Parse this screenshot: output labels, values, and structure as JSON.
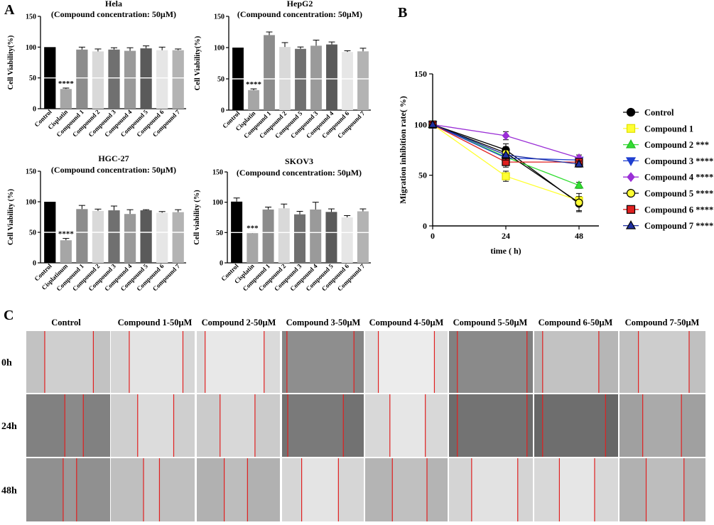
{
  "panels": {
    "a": "A",
    "b": "B",
    "c": "C"
  },
  "chart_data": [
    {
      "type": "bar",
      "title": "Hela",
      "subtitle": "(Compound concentration: 50μM)",
      "ylabel": "Cell Viability(%)",
      "ylim": [
        0,
        150
      ],
      "yticks": [
        "0",
        "50",
        "100",
        "150"
      ],
      "categories": [
        "Control",
        "Cisplatin",
        "Compound 1",
        "Compound 2",
        "Compound 3",
        "Compound 4",
        "Compound 5",
        "Compound 6",
        "Compound 7"
      ],
      "values": [
        100,
        32,
        96,
        93,
        96,
        94,
        98,
        95,
        95
      ],
      "errors": [
        0,
        1.5,
        4,
        4,
        3,
        5,
        4,
        5,
        2
      ],
      "colors": [
        "#000000",
        "#a6a6a6",
        "#8c8c8c",
        "#d9d9d9",
        "#707070",
        "#9a9a9a",
        "#5a5a5a",
        "#e6e6e6",
        "#b3b3b3"
      ],
      "annotations": [
        {
          "category": "Cisplatin",
          "text": "****"
        }
      ]
    },
    {
      "type": "bar",
      "title": "HepG2",
      "subtitle": "(Compound concentration: 50μM)",
      "ylabel": "Cell Viability(%)",
      "ylim": [
        0,
        150
      ],
      "yticks": [
        "0",
        "50",
        "100",
        "150"
      ],
      "categories": [
        "Control",
        "Cisplatin",
        "Compound 1",
        "Compound 2",
        "Compound 5",
        "Compound 3",
        "Compound 4",
        "Compound 6",
        "Compound 7"
      ],
      "values": [
        100,
        32,
        120,
        101,
        98,
        103,
        105,
        93,
        94
      ],
      "errors": [
        0,
        2,
        5,
        7,
        3,
        9,
        4,
        2,
        5
      ],
      "colors": [
        "#000000",
        "#a6a6a6",
        "#8c8c8c",
        "#d9d9d9",
        "#707070",
        "#9a9a9a",
        "#5a5a5a",
        "#e6e6e6",
        "#b3b3b3"
      ],
      "annotations": [
        {
          "category": "Cisplatin",
          "text": "****"
        }
      ]
    },
    {
      "type": "bar",
      "title": "HGC-27",
      "subtitle": "(Compound concentration: 50μM)",
      "ylabel": "Cell Viability (%)",
      "ylim": [
        0,
        150
      ],
      "yticks": [
        "0",
        "50",
        "100",
        "150"
      ],
      "categories": [
        "Control",
        "Cisplatinum",
        "Compound 1",
        "Compound 2",
        "Compound 3",
        "Compound 4",
        "Compound 5",
        "Compound 6",
        "Compound 7"
      ],
      "values": [
        100,
        37,
        88,
        85,
        86,
        80,
        86,
        82,
        83
      ],
      "errors": [
        0,
        3,
        6,
        3,
        7,
        7,
        1,
        2,
        4
      ],
      "colors": [
        "#000000",
        "#a6a6a6",
        "#8c8c8c",
        "#d9d9d9",
        "#707070",
        "#9a9a9a",
        "#5a5a5a",
        "#e6e6e6",
        "#b3b3b3"
      ],
      "annotations": [
        {
          "category": "Cisplatinum",
          "text": "****"
        }
      ]
    },
    {
      "type": "bar",
      "title": "SKOV3",
      "subtitle": "(Compound concentration: 50μM)",
      "ylabel": "Cell viability (%)",
      "ylim": [
        0,
        150
      ],
      "yticks": [
        "0",
        "50",
        "100",
        "150"
      ],
      "categories": [
        "Control",
        "Cisplatin",
        "Compound 1",
        "Compound 2",
        "Compound 3",
        "Compound 4",
        "Compound 5",
        "Compound 6",
        "Compound 7"
      ],
      "values": [
        101,
        49,
        88,
        90,
        80,
        88,
        84,
        75,
        85
      ],
      "errors": [
        6,
        1,
        4,
        7,
        5,
        12,
        5,
        3,
        4
      ],
      "colors": [
        "#000000",
        "#a6a6a6",
        "#8c8c8c",
        "#d9d9d9",
        "#707070",
        "#9a9a9a",
        "#5a5a5a",
        "#e6e6e6",
        "#b3b3b3"
      ],
      "annotations": [
        {
          "category": "Cisplatin",
          "text": "***"
        }
      ]
    },
    {
      "type": "line",
      "title": "",
      "xlabel": "time ( h)",
      "ylabel": "Migration inhibition rate( %)",
      "x": [
        0,
        24,
        48
      ],
      "xticks": [
        "0",
        "24",
        "48"
      ],
      "xlim": [
        0,
        48
      ],
      "ylim": [
        0,
        150
      ],
      "yticks": [
        "0",
        "50",
        "100",
        "150"
      ],
      "legend_position": "right",
      "series": [
        {
          "name": "Control",
          "label_suffix": "",
          "values": [
            100,
            75,
            22
          ],
          "errors": [
            2,
            6,
            7
          ],
          "color": "#000000",
          "edge": "#000000",
          "marker": "circle"
        },
        {
          "name": "Compound 1",
          "label_suffix": "",
          "values": [
            100,
            49,
            25
          ],
          "errors": [
            2,
            5,
            3
          ],
          "color": "#ffff33",
          "edge": "#e0e000",
          "marker": "square"
        },
        {
          "name": "Compound 2",
          "label_suffix": "***",
          "values": [
            100,
            68,
            40
          ],
          "errors": [
            2,
            5,
            3
          ],
          "color": "#33dd33",
          "edge": "#22bb22",
          "marker": "triangle-up"
        },
        {
          "name": "Compound 3",
          "label_suffix": "****",
          "values": [
            100,
            67,
            65
          ],
          "errors": [
            2,
            5,
            3
          ],
          "color": "#1f3fd0",
          "edge": "#1f3fd0",
          "marker": "triangle-down"
        },
        {
          "name": "Compound 4",
          "label_suffix": "****",
          "values": [
            100,
            89,
            67
          ],
          "errors": [
            2,
            4,
            3
          ],
          "color": "#9a2fd6",
          "edge": "#9a2fd6",
          "marker": "diamond"
        },
        {
          "name": "Compound 5",
          "label_suffix": "****",
          "values": [
            100,
            72,
            23
          ],
          "errors": [
            2,
            6,
            9
          ],
          "color": "#ffff33",
          "edge": "#000000",
          "marker": "circle"
        },
        {
          "name": "Compound 6",
          "label_suffix": "****",
          "values": [
            100,
            63,
            63
          ],
          "errors": [
            2,
            5,
            3
          ],
          "color": "#e02020",
          "edge": "#000000",
          "marker": "square"
        },
        {
          "name": "Compound 7",
          "label_suffix": "****",
          "values": [
            100,
            70,
            61
          ],
          "errors": [
            2,
            5,
            3
          ],
          "color": "#1f2fa0",
          "edge": "#000000",
          "marker": "triangle-up"
        }
      ]
    }
  ],
  "scratch_assay": {
    "columns": [
      "Control",
      "Compound 1-50μM",
      "Compound 2-50μM",
      "Compound 3-50μM",
      "Compound 4-50μM",
      "Compound 5-50μM",
      "Compound 6-50μM",
      "Compound 7-50μM"
    ],
    "rows": [
      "0h",
      "24h",
      "48h"
    ],
    "tones": [
      [
        "#cfcfcf",
        "#e4e4e4",
        "#e8e8e8",
        "#8e8e8e",
        "#ececec",
        "#8a8a8a",
        "#c2c2c2",
        "#cdcdcd"
      ],
      [
        "#8a8a8a",
        "#dcdcdc",
        "#d8d8d8",
        "#7a7a7a",
        "#e6e6e6",
        "#737373",
        "#6e6e6e",
        "#aaaaaa"
      ],
      [
        "#9a9a9a",
        "#cbcbcb",
        "#bdbdbd",
        "#e4e4e4",
        "#c0c0c0",
        "#e2e2e2",
        "#e6e6e6",
        "#bdbdbd"
      ]
    ],
    "line_color": "#e02020"
  }
}
